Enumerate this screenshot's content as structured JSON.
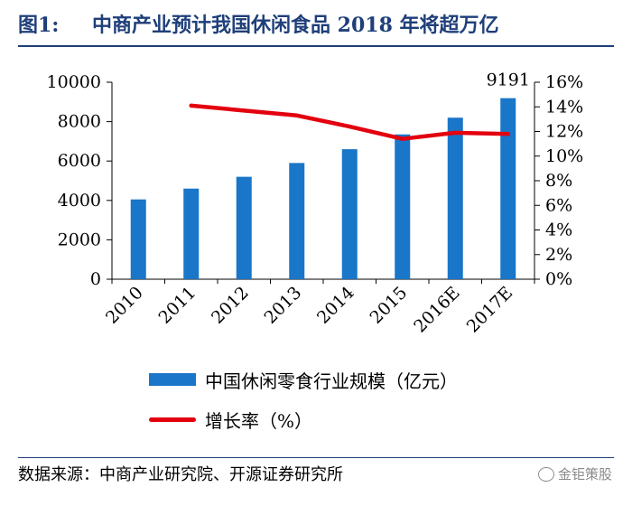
{
  "title": {
    "label": "图1:",
    "text": "中商产业预计我国休闲食品 2018 年将超万亿"
  },
  "chart_data": {
    "type": "bar",
    "categories": [
      "2010",
      "2011",
      "2012",
      "2013",
      "2014",
      "2015",
      "2016E",
      "2017E"
    ],
    "series": [
      {
        "name": "中国休闲零食行业规模（亿元）",
        "kind": "bar",
        "axis": "left",
        "values": [
          4050,
          4600,
          5200,
          5900,
          6600,
          7350,
          8200,
          9191
        ]
      },
      {
        "name": "增长率（%）",
        "kind": "line",
        "axis": "right",
        "values": [
          null,
          14.1,
          13.7,
          13.3,
          12.4,
          11.4,
          11.9,
          11.8
        ]
      }
    ],
    "left_axis": {
      "ylim": [
        0,
        10000
      ],
      "ticks": [
        "0",
        "2000",
        "4000",
        "6000",
        "8000",
        "10000"
      ]
    },
    "right_axis": {
      "ylim": [
        0,
        16
      ],
      "ticks": [
        "0%",
        "2%",
        "4%",
        "6%",
        "8%",
        "10%",
        "12%",
        "14%",
        "16%"
      ]
    },
    "data_labels": [
      {
        "index": 7,
        "text": "9191"
      }
    ],
    "colors": {
      "bar": "#1976c8",
      "line": "#e3000f",
      "axis": "#000000"
    }
  },
  "legend": {
    "bar_label": "中国休闲零食行业规模（亿元）",
    "line_label": "增长率（%）"
  },
  "source": "数据来源：中商产业研究院、开源证券研究所",
  "watermark": {
    "text": "金钜策股",
    "icon": "wechat-icon"
  }
}
